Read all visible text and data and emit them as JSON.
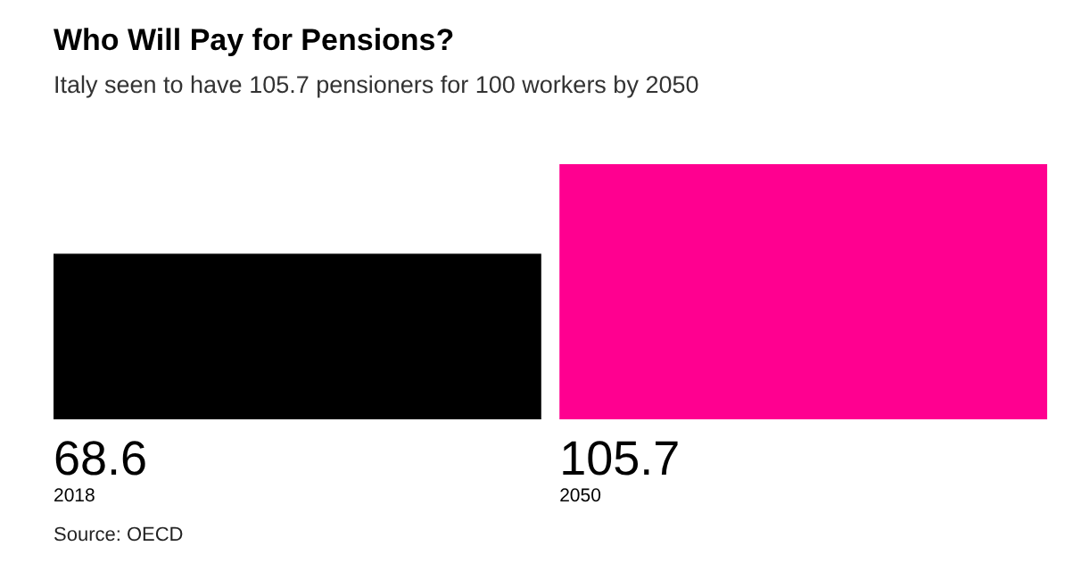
{
  "chart_data": {
    "type": "bar",
    "title": "Who Will Pay for Pensions?",
    "subtitle": "Italy seen to have 105.7 pensioners for 100 workers by 2050",
    "categories": [
      "2018",
      "2050"
    ],
    "values": [
      68.6,
      105.7
    ],
    "colors": [
      "#000000",
      "#ff0090"
    ],
    "data_labels": true,
    "annotations": [
      "Source: OECD"
    ]
  }
}
